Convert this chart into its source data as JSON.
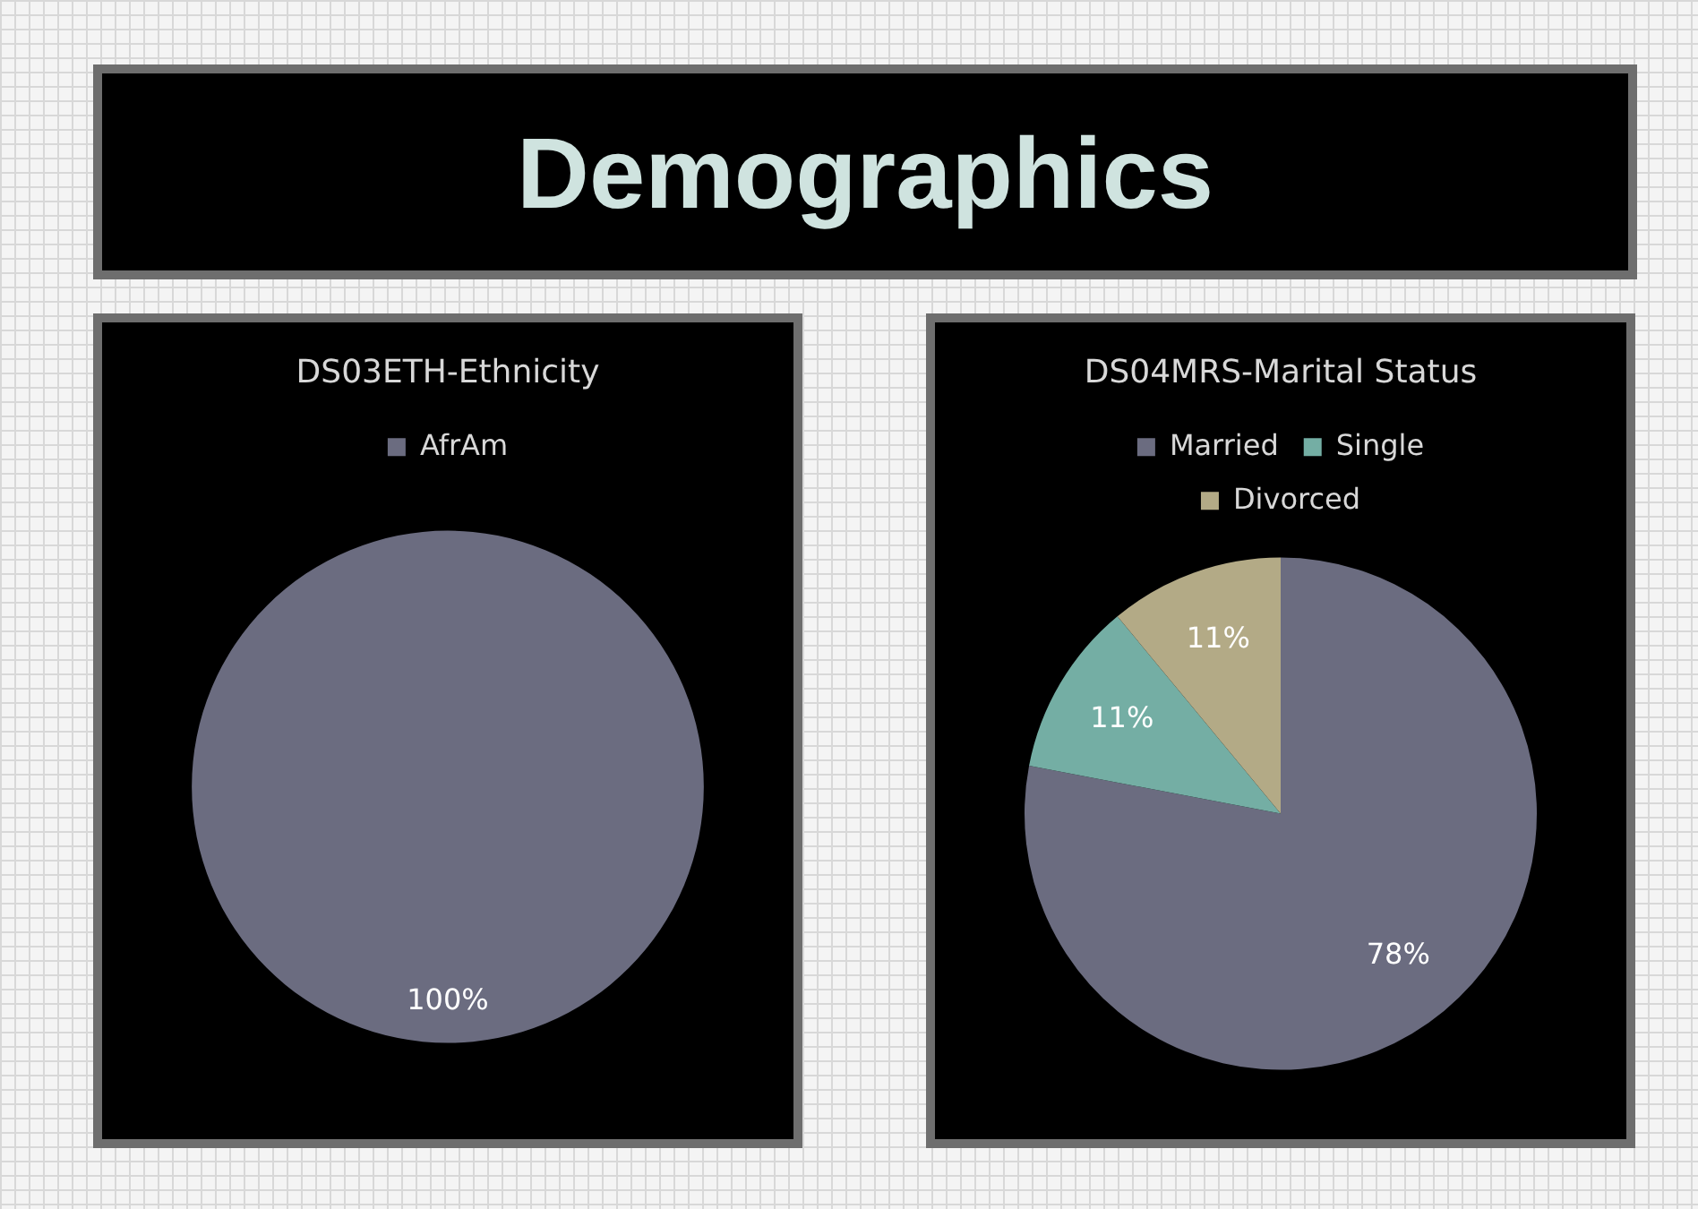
{
  "chart_data": [
    {
      "type": "other",
      "title": "Demographics"
    },
    {
      "type": "pie",
      "title": "DS03ETH-Ethnicity",
      "categories": [
        "AfrAm"
      ],
      "values": [
        100
      ],
      "colors": [
        "#6b6c80"
      ],
      "value_labels": [
        "100%"
      ],
      "legend": "top"
    },
    {
      "type": "pie",
      "title": "DS04MRS-Marital Status",
      "categories": [
        "Married",
        "Single",
        "Divorced"
      ],
      "values": [
        78,
        11,
        11
      ],
      "colors": [
        "#6b6c80",
        "#74aea4",
        "#b3aa86"
      ],
      "value_labels": [
        "78%",
        "11%",
        "11%"
      ],
      "legend": "top"
    }
  ]
}
